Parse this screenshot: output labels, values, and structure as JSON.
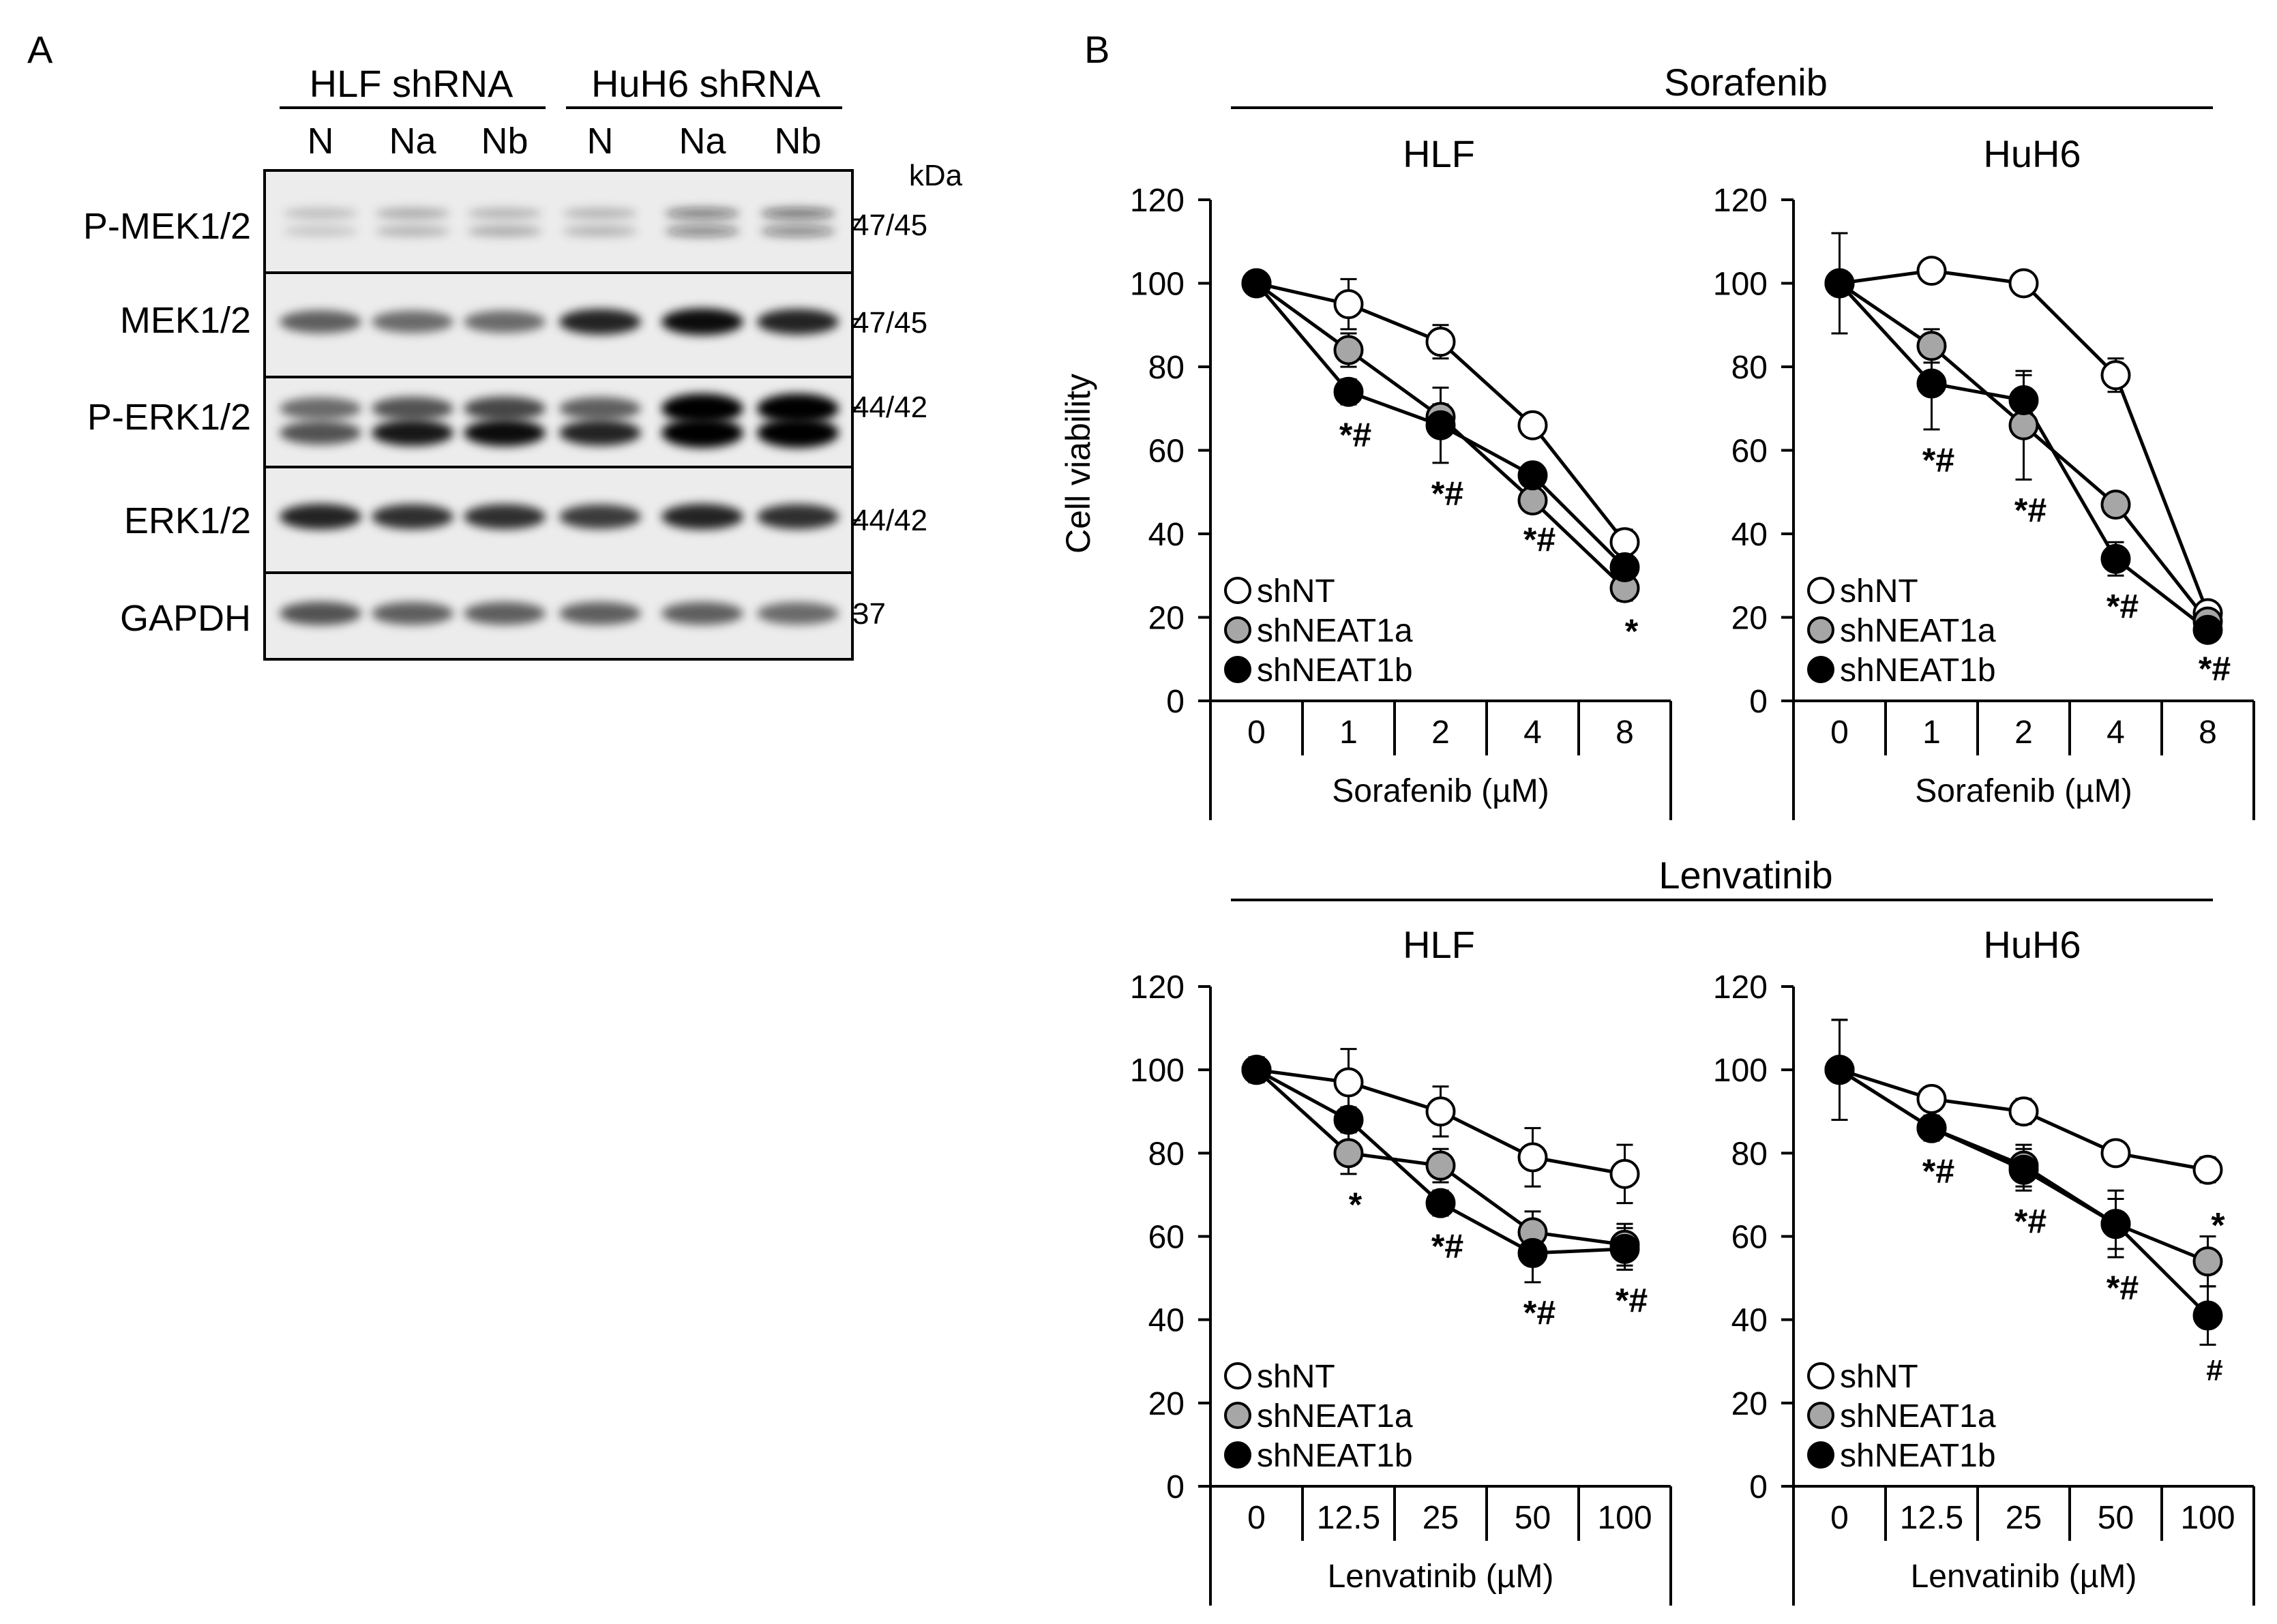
{
  "panel_a": {
    "label": "A",
    "group1": "HLF shRNA",
    "group2": "HuH6 shRNA",
    "lanes": [
      "N",
      "Na",
      "Nb",
      "N",
      "Na",
      "Nb"
    ],
    "kda_label": "kDa",
    "blots": [
      {
        "name": "P-MEK1/2",
        "kda": "47/45",
        "bands": [
          [
            0.25,
            0.2,
            0.35,
            0.3,
            0.3,
            0.35,
            0.3,
            0.3,
            0.65,
            0.6,
            0.7,
            0.6
          ]
        ]
      },
      {
        "name": "MEK1/2",
        "kda": "47/45",
        "bands": [
          [
            0.6,
            0.55,
            0.55,
            0.85,
            0.95,
            0.85
          ]
        ]
      },
      {
        "name": "P-ERK1/2",
        "kda": "44/42",
        "bands": [
          [
            0.55,
            0.65,
            0.7,
            0.6,
            1.0,
            1.0
          ],
          [
            0.65,
            0.9,
            0.95,
            0.85,
            1.0,
            1.0
          ]
        ]
      },
      {
        "name": "ERK1/2",
        "kda": "44/42",
        "bands": [
          [
            0.85,
            0.8,
            0.8,
            0.75,
            0.85,
            0.8
          ]
        ]
      },
      {
        "name": "GAPDH",
        "kda": "37",
        "bands": [
          [
            0.65,
            0.6,
            0.6,
            0.6,
            0.6,
            0.55
          ]
        ]
      }
    ]
  },
  "panel_b": {
    "label": "B",
    "drugs": [
      {
        "title": "Sorafenib",
        "xlabel": "Sorafenib (µM)"
      },
      {
        "title": "Lenvatinib",
        "xlabel": "Lenvatinib (µM)"
      }
    ],
    "ylabel": "Cell viability",
    "legend": [
      "shNT",
      "shNEAT1a",
      "shNEAT1b"
    ]
  },
  "series_colors": {
    "shNT": "#ffffff",
    "shNEAT1a": "#a6a6a6",
    "shNEAT1b": "#000000"
  },
  "chart_data": [
    {
      "type": "line",
      "title": "HLF",
      "drug": "Sorafenib",
      "categories": [
        "0",
        "1",
        "2",
        "4",
        "8"
      ],
      "xlabel": "Sorafenib (µM)",
      "ylabel": "Cell viability",
      "ylim": [
        0,
        120
      ],
      "yticks": [
        0,
        20,
        40,
        60,
        80,
        100,
        120
      ],
      "series": [
        {
          "name": "shNT",
          "values": [
            100,
            95,
            86,
            66,
            38
          ],
          "err": [
            1,
            6,
            4,
            1,
            3
          ]
        },
        {
          "name": "shNEAT1a",
          "values": [
            100,
            84,
            68,
            48,
            27
          ],
          "err": [
            1,
            4,
            3,
            2,
            3
          ]
        },
        {
          "name": "shNEAT1b",
          "values": [
            100,
            74,
            66,
            54,
            32
          ],
          "err": [
            1,
            3,
            9,
            2,
            4
          ]
        }
      ],
      "annotations": [
        "",
        "*#",
        "*#",
        "*#",
        "*"
      ]
    },
    {
      "type": "line",
      "title": "HuH6",
      "drug": "Sorafenib",
      "categories": [
        "0",
        "1",
        "2",
        "4",
        "8"
      ],
      "xlabel": "Sorafenib (µM)",
      "ylabel": "",
      "ylim": [
        0,
        120
      ],
      "yticks": [
        0,
        20,
        40,
        60,
        80,
        100,
        120
      ],
      "series": [
        {
          "name": "shNT",
          "values": [
            100,
            103,
            100,
            78,
            21
          ],
          "err": [
            12,
            1,
            1,
            4,
            2
          ]
        },
        {
          "name": "shNEAT1a",
          "values": [
            100,
            85,
            66,
            47,
            19
          ],
          "err": [
            12,
            4,
            13,
            2,
            2
          ]
        },
        {
          "name": "shNEAT1b",
          "values": [
            100,
            76,
            72,
            34,
            17
          ],
          "err": [
            12,
            11,
            6,
            4,
            2
          ]
        }
      ],
      "annotations": [
        "",
        "*#",
        "*#",
        "*#",
        "*#"
      ]
    },
    {
      "type": "line",
      "title": "HLF",
      "drug": "Lenvatinib",
      "categories": [
        "0",
        "12.5",
        "25",
        "50",
        "100"
      ],
      "xlabel": "Lenvatinib (µM)",
      "ylabel": "",
      "ylim": [
        0,
        120
      ],
      "yticks": [
        0,
        20,
        40,
        60,
        80,
        100,
        120
      ],
      "series": [
        {
          "name": "shNT",
          "values": [
            100,
            97,
            90,
            79,
            75
          ],
          "err": [
            3,
            8,
            6,
            7,
            7
          ]
        },
        {
          "name": "shNEAT1a",
          "values": [
            100,
            80,
            77,
            61,
            58
          ],
          "err": [
            3,
            5,
            4,
            5,
            5
          ]
        },
        {
          "name": "shNEAT1b",
          "values": [
            100,
            88,
            68,
            56,
            57
          ],
          "err": [
            3,
            3,
            3,
            7,
            5
          ]
        }
      ],
      "annotations": [
        "",
        "*",
        "*#",
        "*#",
        "*#"
      ]
    },
    {
      "type": "line",
      "title": "HuH6",
      "drug": "Lenvatinib",
      "categories": [
        "0",
        "12.5",
        "25",
        "50",
        "100"
      ],
      "xlabel": "Lenvatinib (µM)",
      "ylabel": "",
      "ylim": [
        0,
        120
      ],
      "yticks": [
        0,
        20,
        40,
        60,
        80,
        100,
        120
      ],
      "series": [
        {
          "name": "shNT",
          "values": [
            100,
            93,
            90,
            80,
            76
          ],
          "err": [
            12,
            2,
            3,
            2,
            3
          ]
        },
        {
          "name": "shNEAT1a",
          "values": [
            100,
            86,
            77,
            63,
            54
          ],
          "err": [
            12,
            3,
            5,
            8,
            6
          ]
        },
        {
          "name": "shNEAT1b",
          "values": [
            100,
            86,
            76,
            63,
            41
          ],
          "err": [
            12,
            3,
            5,
            6,
            7
          ]
        }
      ],
      "annotations": [
        "",
        "*#",
        "*#",
        "*#",
        "*,#"
      ]
    }
  ]
}
